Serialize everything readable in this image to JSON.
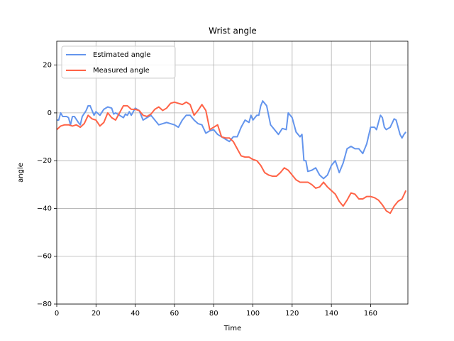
{
  "chart_data": {
    "type": "line",
    "title": "Wrist angle",
    "xlabel": "Time",
    "ylabel": "angle",
    "xlim": [
      0,
      179
    ],
    "ylim": [
      -80,
      30
    ],
    "xticks": [
      0,
      20,
      40,
      60,
      80,
      100,
      120,
      140,
      160
    ],
    "yticks": [
      {
        "value": -80,
        "label": "−80"
      },
      {
        "value": -60,
        "label": "−60"
      },
      {
        "value": -40,
        "label": "−40"
      },
      {
        "value": -20,
        "label": "−20"
      },
      0,
      20
    ],
    "grid": true,
    "legend": "upper left",
    "series": [
      {
        "name": "Estimated angle",
        "color": "#6495ed",
        "x": [
          0,
          1,
          2,
          3,
          5,
          6,
          7,
          8,
          9,
          11,
          12,
          13,
          15,
          16,
          17,
          18,
          19,
          20,
          22,
          24,
          26,
          28,
          29,
          30,
          32,
          34,
          35,
          36,
          37,
          38,
          40,
          42,
          44,
          46,
          48,
          50,
          52,
          54,
          56,
          58,
          60,
          62,
          64,
          66,
          68,
          70,
          72,
          74,
          76,
          78,
          80,
          82,
          84,
          86,
          88,
          90,
          92,
          94,
          96,
          98,
          99,
          100,
          102,
          103,
          104,
          105,
          107,
          109,
          112,
          113,
          115,
          117,
          118,
          120,
          122,
          124,
          125,
          126,
          127,
          128,
          130,
          132,
          134,
          136,
          138,
          140,
          142,
          144,
          146,
          148,
          150,
          152,
          154,
          156,
          158,
          160,
          162,
          163,
          164,
          165,
          166,
          167,
          168,
          170,
          172,
          173,
          175,
          176,
          177,
          178
        ],
        "values": [
          -3,
          -3,
          0,
          -1.5,
          -1.5,
          -2,
          -5,
          -1.5,
          -1.5,
          -4,
          -5,
          -1.5,
          1,
          3,
          3,
          1,
          -1,
          0.5,
          -1,
          1.5,
          2.5,
          2,
          -0.5,
          0,
          -1,
          -2,
          -0.5,
          -1,
          0.5,
          -1,
          2,
          1,
          -3,
          -2,
          -1,
          -3,
          -5,
          -4.5,
          -4,
          -4.5,
          -5,
          -6,
          -3,
          -1,
          -1,
          -3,
          -4.5,
          -5,
          -8.5,
          -7.5,
          -7,
          -9,
          -10,
          -11,
          -12,
          -10,
          -10,
          -6,
          -3,
          -4,
          -1,
          -3,
          -1,
          -1,
          3,
          5,
          3,
          -5,
          -8,
          -9,
          -6.5,
          -7,
          0,
          -2,
          -8,
          -10,
          -9,
          -20,
          -20,
          -24.5,
          -24,
          -23,
          -26,
          -27.5,
          -26,
          -22,
          -20,
          -25,
          -21,
          -15,
          -14,
          -15,
          -15,
          -17,
          -13,
          -6,
          -6,
          -7,
          -4,
          -1,
          -2,
          -6,
          -7,
          -6,
          -2.5,
          -3,
          -9,
          -10.5,
          -9,
          -8
        ]
      },
      {
        "name": "Measured angle",
        "color": "#ff6347",
        "x": [
          0,
          2,
          4,
          6,
          8,
          10,
          12,
          14,
          16,
          18,
          20,
          22,
          24,
          26,
          28,
          30,
          32,
          34,
          36,
          38,
          40,
          42,
          44,
          46,
          48,
          50,
          52,
          54,
          56,
          58,
          60,
          62,
          64,
          66,
          68,
          70,
          72,
          74,
          76,
          78,
          80,
          82,
          84,
          86,
          88,
          90,
          92,
          94,
          96,
          98,
          100,
          102,
          104,
          106,
          108,
          110,
          112,
          114,
          116,
          118,
          120,
          122,
          124,
          126,
          128,
          130,
          132,
          134,
          136,
          138,
          140,
          142,
          144,
          146,
          148,
          150,
          152,
          154,
          156,
          158,
          160,
          162,
          164,
          166,
          168,
          170,
          172,
          174,
          176,
          178
        ],
        "values": [
          -7,
          -5.5,
          -5,
          -5,
          -5.5,
          -5,
          -6,
          -4.5,
          -1,
          -2.5,
          -3,
          -5.5,
          -4,
          0,
          -2,
          -3,
          0,
          3,
          3,
          1.5,
          1.5,
          1,
          -1,
          -1.5,
          -0.5,
          1.5,
          2.5,
          1,
          2,
          4,
          4.5,
          4,
          3.5,
          4.5,
          3.5,
          -1,
          1,
          3.5,
          1,
          -7,
          -6,
          -5,
          -10,
          -10.5,
          -10.5,
          -12,
          -15,
          -18,
          -18.5,
          -18.5,
          -19.5,
          -20,
          -22,
          -25,
          -26,
          -26.5,
          -26.5,
          -25,
          -23,
          -24,
          -26,
          -28,
          -29,
          -29,
          -29,
          -30,
          -31.5,
          -31,
          -29,
          -31,
          -32.5,
          -34,
          -37,
          -39,
          -36.5,
          -33.5,
          -34,
          -36,
          -36,
          -35,
          -35,
          -35.5,
          -36.5,
          -38.5,
          -41,
          -42,
          -39,
          -37,
          -36,
          -32.5
        ]
      }
    ]
  }
}
